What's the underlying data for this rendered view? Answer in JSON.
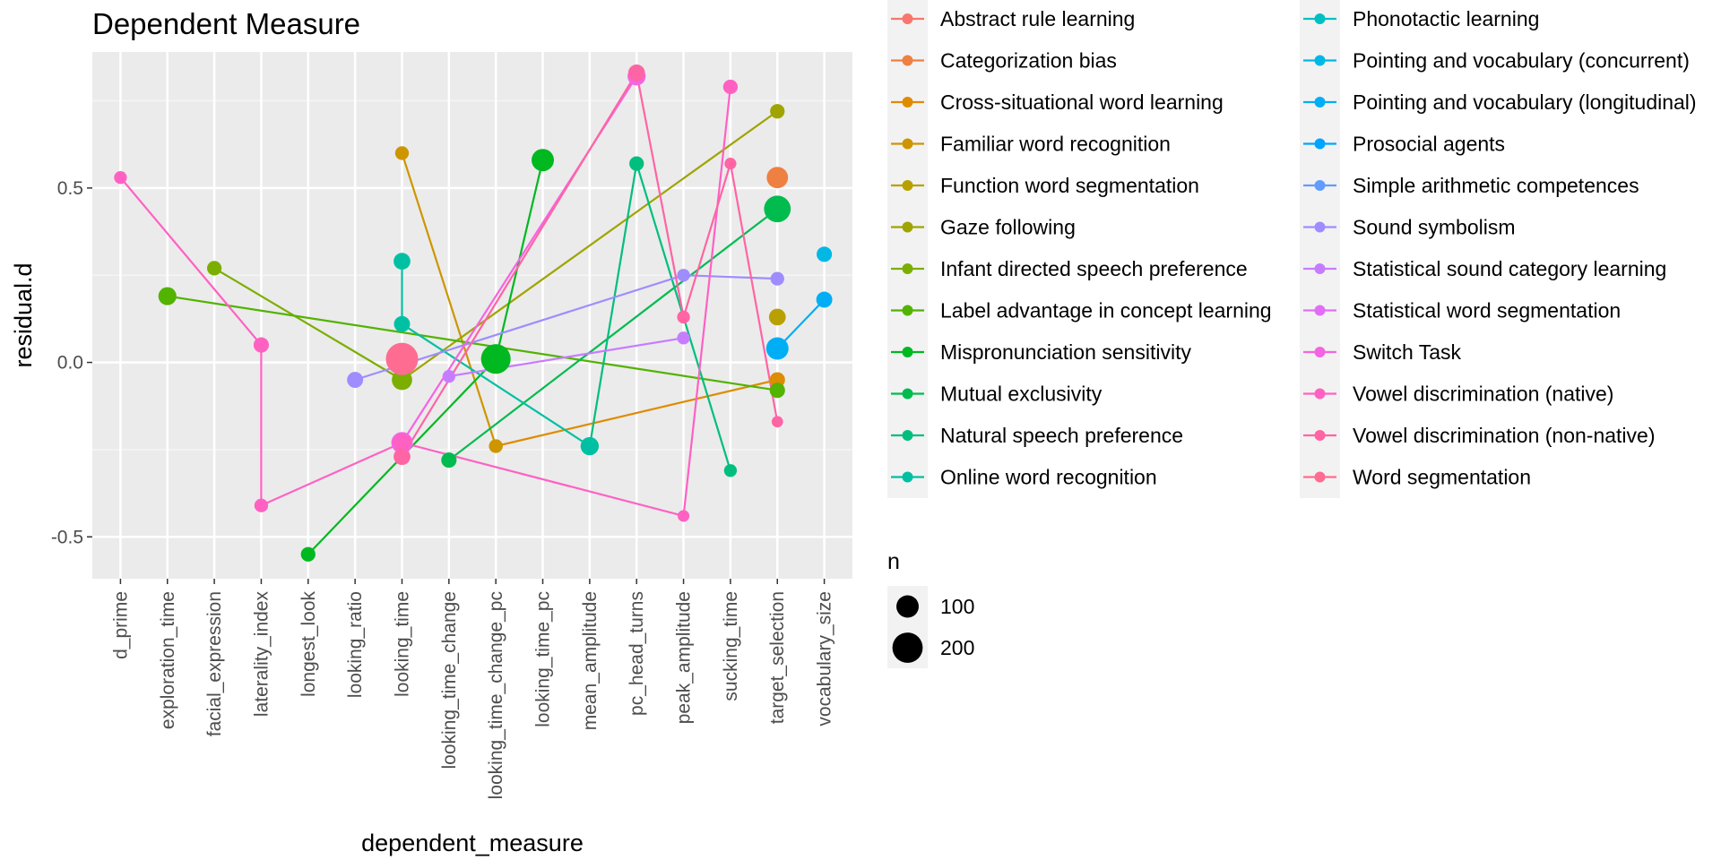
{
  "chart_data": {
    "type": "scatter",
    "title": "Dependent Measure",
    "xlabel": "dependent_measure",
    "ylabel": "residual.d",
    "ylim": [
      -0.62,
      0.89
    ],
    "yticks": [
      -0.5,
      0.0,
      0.5
    ],
    "ytick_labels": [
      "-0.5",
      "0.0",
      "0.5"
    ],
    "grid": true,
    "categories": [
      "d_prime",
      "exploration_time",
      "facial_expression",
      "laterality_index",
      "longest_look",
      "looking_ratio",
      "looking_time",
      "looking_time_change",
      "looking_time_change_pc",
      "looking_time_pc",
      "mean_amplitude",
      "pc_head_turns",
      "peak_amplitude",
      "sucking_time",
      "target_selection",
      "vocabulary_size"
    ],
    "legend_title": "",
    "legend_position": "right",
    "size_legend": {
      "title": "n",
      "values": [
        100,
        200
      ],
      "labels": [
        "100",
        "200"
      ]
    },
    "series": [
      {
        "name": "Abstract rule learning",
        "color": "#F8766D",
        "points": []
      },
      {
        "name": "Categorization bias",
        "color": "#EE8042",
        "points": [
          {
            "x": "target_selection",
            "y": 0.53,
            "n": 90
          }
        ]
      },
      {
        "name": "Cross-situational word learning",
        "color": "#DE8C00",
        "points": [
          {
            "x": "looking_time_change_pc",
            "y": -0.24,
            "n": 30
          },
          {
            "x": "target_selection",
            "y": -0.05,
            "n": 40
          }
        ]
      },
      {
        "name": "Familiar word recognition",
        "color": "#CD9600",
        "points": [
          {
            "x": "looking_time",
            "y": 0.6,
            "n": 30
          },
          {
            "x": "looking_time_change_pc",
            "y": -0.24,
            "n": 30
          }
        ]
      },
      {
        "name": "Function word segmentation",
        "color": "#B8A000",
        "points": [
          {
            "x": "target_selection",
            "y": 0.13,
            "n": 50
          }
        ]
      },
      {
        "name": "Gaze following",
        "color": "#9FA400",
        "points": [
          {
            "x": "looking_time",
            "y": -0.05,
            "n": 60
          },
          {
            "x": "target_selection",
            "y": 0.72,
            "n": 35
          }
        ]
      },
      {
        "name": "Infant directed speech preference",
        "color": "#7CAE00",
        "points": [
          {
            "x": "facial_expression",
            "y": 0.27,
            "n": 35
          },
          {
            "x": "looking_time",
            "y": -0.05,
            "n": 80
          }
        ]
      },
      {
        "name": "Label advantage in concept learning",
        "color": "#52B300",
        "points": [
          {
            "x": "exploration_time",
            "y": 0.19,
            "n": 60
          },
          {
            "x": "target_selection",
            "y": -0.08,
            "n": 40
          }
        ]
      },
      {
        "name": "Mispronunciation sensitivity",
        "color": "#00B81F",
        "points": [
          {
            "x": "longest_look",
            "y": -0.55,
            "n": 35
          },
          {
            "x": "looking_time_change_pc",
            "y": 0.01,
            "n": 190
          },
          {
            "x": "looking_time_pc",
            "y": 0.58,
            "n": 100
          }
        ]
      },
      {
        "name": "Mutual exclusivity",
        "color": "#00BB4E",
        "points": [
          {
            "x": "looking_time_change",
            "y": -0.28,
            "n": 40
          },
          {
            "x": "target_selection",
            "y": 0.44,
            "n": 150
          }
        ]
      },
      {
        "name": "Natural speech preference",
        "color": "#00BE7D",
        "points": [
          {
            "x": "mean_amplitude",
            "y": -0.24,
            "n": 60
          },
          {
            "x": "pc_head_turns",
            "y": 0.57,
            "n": 35
          },
          {
            "x": "sucking_time",
            "y": -0.31,
            "n": 25
          }
        ]
      },
      {
        "name": "Online word recognition",
        "color": "#00C0A3",
        "points": [
          {
            "x": "looking_time",
            "y": 0.29,
            "n": 50
          },
          {
            "x": "looking_time",
            "y": 0.11,
            "n": 45
          },
          {
            "x": "mean_amplitude",
            "y": -0.24,
            "n": 60
          }
        ]
      },
      {
        "name": "Phonotactic learning",
        "color": "#00BFC4",
        "points": []
      },
      {
        "name": "Pointing and vocabulary (concurrent)",
        "color": "#00B8E5",
        "points": [
          {
            "x": "vocabulary_size",
            "y": 0.31,
            "n": 40
          }
        ]
      },
      {
        "name": "Pointing and vocabulary (longitudinal)",
        "color": "#00AEF5",
        "points": [
          {
            "x": "vocabulary_size",
            "y": 0.18,
            "n": 45
          },
          {
            "x": "target_selection",
            "y": 0.04,
            "n": 100
          }
        ]
      },
      {
        "name": "Prosocial agents",
        "color": "#00A5FF",
        "points": []
      },
      {
        "name": "Simple arithmetic competences",
        "color": "#619CFF",
        "points": []
      },
      {
        "name": "Sound symbolism",
        "color": "#9F8CFF",
        "points": [
          {
            "x": "looking_ratio",
            "y": -0.05,
            "n": 45
          },
          {
            "x": "peak_amplitude",
            "y": 0.25,
            "n": 25
          },
          {
            "x": "target_selection",
            "y": 0.24,
            "n": 30
          }
        ]
      },
      {
        "name": "Statistical sound category learning",
        "color": "#C77CFF",
        "points": [
          {
            "x": "looking_time_change",
            "y": -0.04,
            "n": 25
          },
          {
            "x": "peak_amplitude",
            "y": 0.07,
            "n": 25
          }
        ]
      },
      {
        "name": "Statistical word segmentation",
        "color": "#E26EF7",
        "points": []
      },
      {
        "name": "Switch Task",
        "color": "#F564E3",
        "points": [
          {
            "x": "looking_time",
            "y": -0.23,
            "n": 90
          },
          {
            "x": "pc_head_turns",
            "y": 0.82,
            "n": 60
          }
        ]
      },
      {
        "name": "Vowel discrimination (native)",
        "color": "#FF61C3",
        "points": [
          {
            "x": "looking_time",
            "y": -0.23,
            "n": 60
          },
          {
            "x": "peak_amplitude",
            "y": -0.44,
            "n": 20
          },
          {
            "x": "sucking_time",
            "y": 0.79,
            "n": 35
          },
          {
            "x": "d_prime",
            "y": 0.53,
            "n": 25
          },
          {
            "x": "laterality_index",
            "y": 0.05,
            "n": 40
          },
          {
            "x": "laterality_index",
            "y": -0.41,
            "n": 30
          }
        ]
      },
      {
        "name": "Vowel discrimination (non-native)",
        "color": "#FF64A4",
        "points": [
          {
            "x": "looking_time",
            "y": -0.27,
            "n": 50
          },
          {
            "x": "pc_head_turns",
            "y": 0.83,
            "n": 50
          },
          {
            "x": "sucking_time",
            "y": 0.57,
            "n": 20
          },
          {
            "x": "target_selection",
            "y": -0.17,
            "n": 18
          },
          {
            "x": "peak_amplitude",
            "y": 0.13,
            "n": 25
          }
        ]
      },
      {
        "name": "Word segmentation",
        "color": "#FF6C91",
        "points": [
          {
            "x": "looking_time",
            "y": 0.01,
            "n": 230
          }
        ]
      }
    ]
  }
}
